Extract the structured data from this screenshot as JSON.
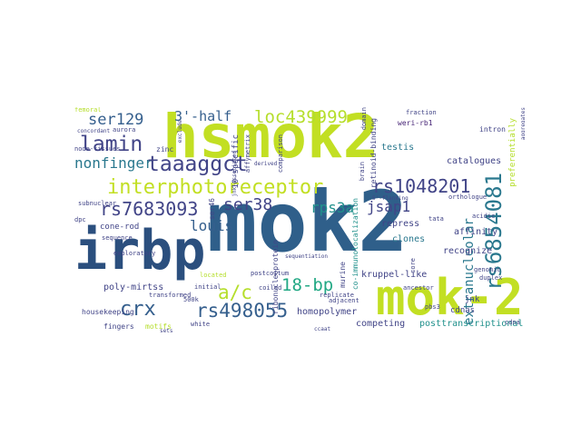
{
  "palette": {
    "purple": "#482677",
    "indigo": "#414487",
    "blue": "#355f8d",
    "slate": "#2f4e7a",
    "teal": "#2a788e",
    "teal2": "#21918c",
    "green": "#22a884",
    "lime": "#7ad151",
    "yellow": "#b5de2b",
    "lemon": "#d0e11c"
  },
  "words": {
    "hsmok2": "hsmok2",
    "irbp": "irbp",
    "mok2_big": "mok2",
    "mok2_dash": "mok-2",
    "rs6854081": "rs6854081",
    "interphotoreceptor": "interphotoreceptor",
    "lamin": "lamin",
    "taaaggct": "taaaggct",
    "rs7683093": "rs7683093",
    "loc439999": "loc439999",
    "three_half": "3'-half",
    "ser129": "ser129",
    "nonfinger": "nonfinger",
    "rs1048201": "rs1048201",
    "ser38": "ser38",
    "rps3a": "rps3a",
    "jsap1": "jsap1",
    "louis": "louis",
    "eighteen_bp": "18-bp",
    "ac": "a/c",
    "crx": "crx",
    "rs498055": "rs498055",
    "extranucleolar": "extranucleolar",
    "homopolymer": "homopolymer",
    "kruppel_like": "kruppel-like",
    "competing": "competing",
    "posttranscriptional": "posttranscriptional",
    "poly_mirtss": "poly-mirtss",
    "fingers": "fingers",
    "cone_rod": "cone-rod",
    "housekeeping": "housekeeping",
    "testis": "testis",
    "clones": "clones",
    "recognize": "recognize",
    "affinity": "affinity",
    "repress": "repress",
    "cdnas": "cdnas",
    "catalogues": "catalogues",
    "weri_rb1": "weri-rb1",
    "fraction": "fraction",
    "intron": "intron",
    "retinoid_binding": "retinoid-binding",
    "ten_specific": "10-specific",
    "zinc": "zinc",
    "aurora": "aurora",
    "node_tissues": "node-tissues",
    "exploratory": "exploratory",
    "subnuclear": "subnuclear",
    "sequence": "sequence",
    "five_hundred_k": "500k",
    "coiled": "coiled",
    "transformed": "transformed",
    "motifs": "motifs",
    "postcoitum": "postcoitum",
    "ribonucleoprotein": "ribonucleoprotein",
    "immunolocalization": "co-immunolocalization",
    "murine": "murine",
    "replicate": "replicate",
    "ser46": "ser46",
    "brain": "brain",
    "genomic": "genomic",
    "duplex": "duplex",
    "acidic": "acidic",
    "jnk": "jnk",
    "core": "core",
    "orthologue": "orthologue",
    "tata": "tata",
    "preferentially": "preferentially",
    "affymetrix": "affymetrix",
    "comparison": "comparison",
    "domain": "domain",
    "dpc": "dpc",
    "white": "white",
    "initial": "initial",
    "located": "located",
    "adjacent": "adjacent",
    "pbs3": "pbs3",
    "cdna": "cdna",
    "femoral": "femoral",
    "concordant": "concordant",
    "exclude": "exclude",
    "ancestor": "ancestor",
    "derived": "derived",
    "ccaat": "ccaat",
    "predicted": "predicted",
    "aggregates": "aggregates",
    "flanking": "5'-flanking",
    "lymph": "jnk-associated",
    "sets": "sets",
    "sequentiation": "sequentiation"
  }
}
